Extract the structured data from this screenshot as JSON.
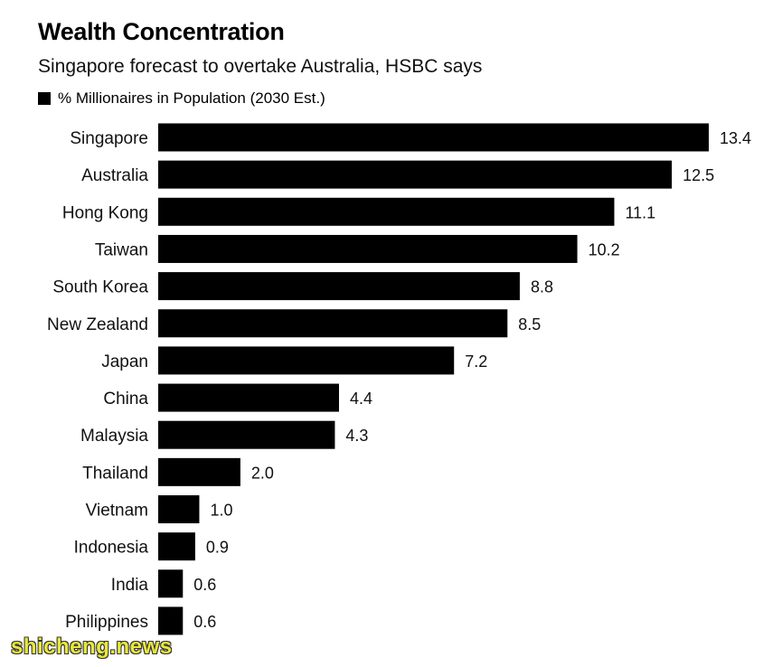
{
  "chart_data": {
    "type": "bar",
    "orientation": "horizontal",
    "title": "Wealth Concentration",
    "subtitle": "Singapore forecast to overtake Australia, HSBC says",
    "legend": "% Millionaires in Population (2030 Est.)",
    "categories": [
      "Singapore",
      "Australia",
      "Hong Kong",
      "Taiwan",
      "South Korea",
      "New Zealand",
      "Japan",
      "China",
      "Malaysia",
      "Thailand",
      "Vietnam",
      "Indonesia",
      "India",
      "Philippines"
    ],
    "values": [
      13.4,
      12.5,
      11.1,
      10.2,
      8.8,
      8.5,
      7.2,
      4.4,
      4.3,
      2.0,
      1.0,
      0.9,
      0.6,
      0.6
    ],
    "value_labels": [
      "13.4",
      "12.5",
      "11.1",
      "10.2",
      "8.8",
      "8.5",
      "7.2",
      "4.4",
      "4.3",
      "2.0",
      "1.0",
      "0.9",
      "0.6",
      "0.6"
    ],
    "xlim": [
      0,
      13.4
    ],
    "grid": false,
    "bar_color": "#000000"
  },
  "watermark": "shicheng.news"
}
